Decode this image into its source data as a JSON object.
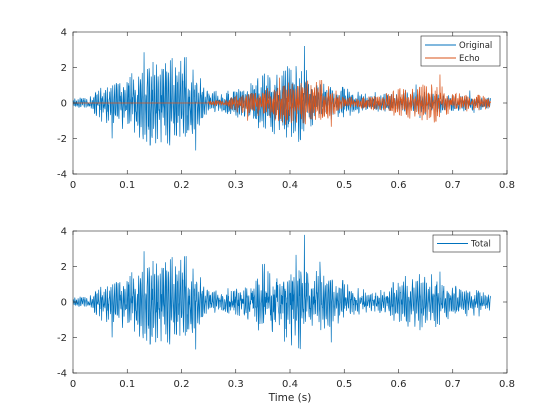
{
  "chart_data": [
    {
      "type": "line",
      "title": "",
      "xlabel": "",
      "ylabel": "",
      "xlim": [
        0,
        0.8
      ],
      "ylim": [
        -4,
        4
      ],
      "x_ticks": [
        "0",
        "0.1",
        "0.2",
        "0.3",
        "0.4",
        "0.5",
        "0.6",
        "0.7",
        "0.8"
      ],
      "y_ticks": [
        "-4",
        "-2",
        "0",
        "2",
        "4"
      ],
      "grid": false,
      "legend_position": "top-right",
      "duration": 0.77,
      "series": [
        {
          "name": "Original",
          "color": "#0072BD",
          "envelope": [
            [
              0.0,
              0.25
            ],
            [
              0.03,
              0.3
            ],
            [
              0.05,
              0.9
            ],
            [
              0.08,
              1.2
            ],
            [
              0.1,
              1.5
            ],
            [
              0.13,
              2.0
            ],
            [
              0.15,
              2.4
            ],
            [
              0.17,
              2.8
            ],
            [
              0.19,
              2.2
            ],
            [
              0.21,
              2.5
            ],
            [
              0.23,
              1.2
            ],
            [
              0.25,
              0.6
            ],
            [
              0.28,
              0.6
            ],
            [
              0.32,
              0.8
            ],
            [
              0.34,
              1.4
            ],
            [
              0.36,
              1.8
            ],
            [
              0.38,
              1.4
            ],
            [
              0.4,
              2.0
            ],
            [
              0.42,
              2.1
            ],
            [
              0.44,
              1.3
            ],
            [
              0.47,
              0.9
            ],
            [
              0.5,
              0.8
            ],
            [
              0.52,
              0.6
            ],
            [
              0.55,
              0.35
            ],
            [
              0.58,
              0.5
            ],
            [
              0.62,
              0.6
            ],
            [
              0.66,
              0.6
            ],
            [
              0.7,
              0.45
            ],
            [
              0.74,
              0.4
            ],
            [
              0.77,
              0.3
            ]
          ]
        },
        {
          "name": "Echo",
          "color": "#D95319",
          "delay": 0.25,
          "gain": 0.5
        }
      ]
    },
    {
      "type": "line",
      "title": "",
      "xlabel": "Time (s)",
      "ylabel": "",
      "xlim": [
        0,
        0.8
      ],
      "ylim": [
        -4,
        4
      ],
      "x_ticks": [
        "0",
        "0.1",
        "0.2",
        "0.3",
        "0.4",
        "0.5",
        "0.6",
        "0.7",
        "0.8"
      ],
      "y_ticks": [
        "-4",
        "-2",
        "0",
        "2",
        "4"
      ],
      "grid": false,
      "legend_position": "top-right",
      "series": [
        {
          "name": "Total",
          "color": "#0072BD",
          "composition": "Original + Echo"
        }
      ]
    }
  ]
}
